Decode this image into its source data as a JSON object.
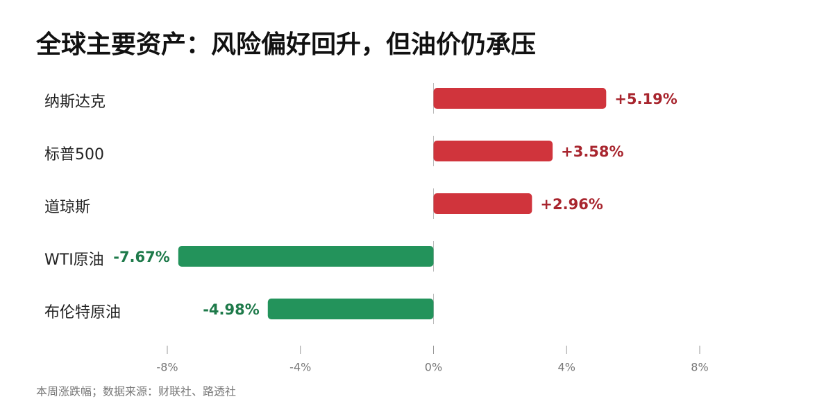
{
  "chart_data": {
    "type": "bar",
    "orientation": "horizontal",
    "title": "全球主要资产：风险偏好回升，但油价仍承压",
    "categories": [
      "纳斯达克",
      "标普500",
      "道琼斯",
      "WTI原油",
      "布伦特原油"
    ],
    "values": [
      5.19,
      3.58,
      2.96,
      -7.67,
      -4.98
    ],
    "value_labels": [
      "+5.19%",
      "+3.58%",
      "+2.96%",
      "-7.67%",
      "-4.98%"
    ],
    "colors": [
      "#d0343c",
      "#d0343c",
      "#d0343c",
      "#23935b",
      "#23935b"
    ],
    "label_colors": [
      "#a8252e",
      "#a8252e",
      "#a8252e",
      "#1e7a4a",
      "#1e7a4a"
    ],
    "xlim": [
      -8,
      8
    ],
    "xticks": [
      {
        "value": -8,
        "label": "-8%"
      },
      {
        "value": -4,
        "label": "-4%"
      },
      {
        "value": 0,
        "label": "0%"
      },
      {
        "value": 4,
        "label": "4%"
      },
      {
        "value": 8,
        "label": "8%"
      }
    ],
    "source": "本周涨跌幅；数据来源：财联社、路透社"
  }
}
